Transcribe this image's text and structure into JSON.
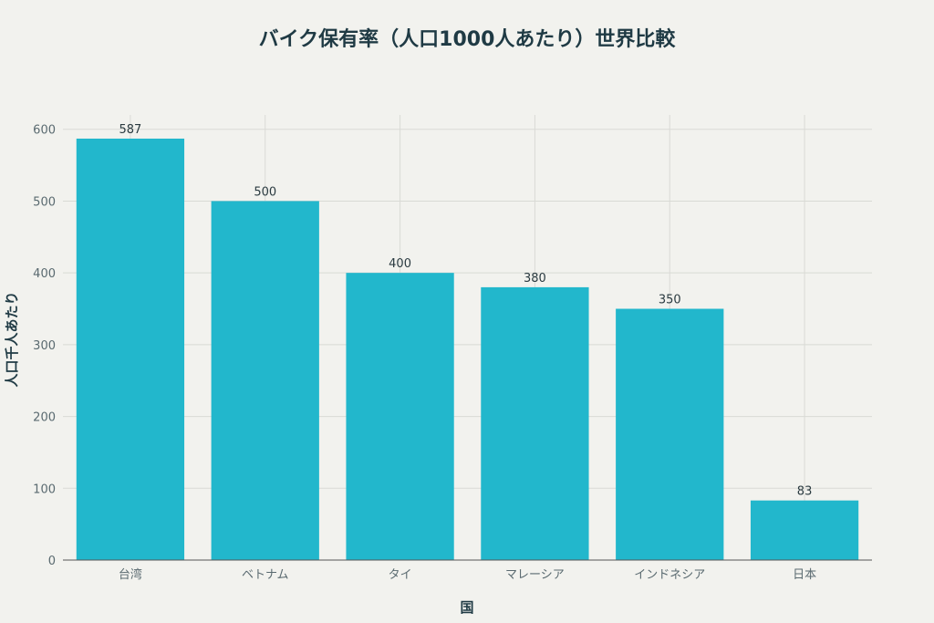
{
  "chart_data": {
    "type": "bar",
    "title": "バイク保有率（人口1000人あたり）世界比較",
    "xlabel": "国",
    "ylabel": "人口千人あたり",
    "categories": [
      "台湾",
      "ベトナム",
      "タイ",
      "マレーシア",
      "インドネシア",
      "日本"
    ],
    "values": [
      587,
      500,
      400,
      380,
      350,
      83
    ],
    "ylim": [
      0,
      620
    ],
    "yticks": [
      0,
      100,
      200,
      300,
      400,
      500,
      600
    ],
    "grid": true,
    "bar_color": "#22b7cc"
  }
}
